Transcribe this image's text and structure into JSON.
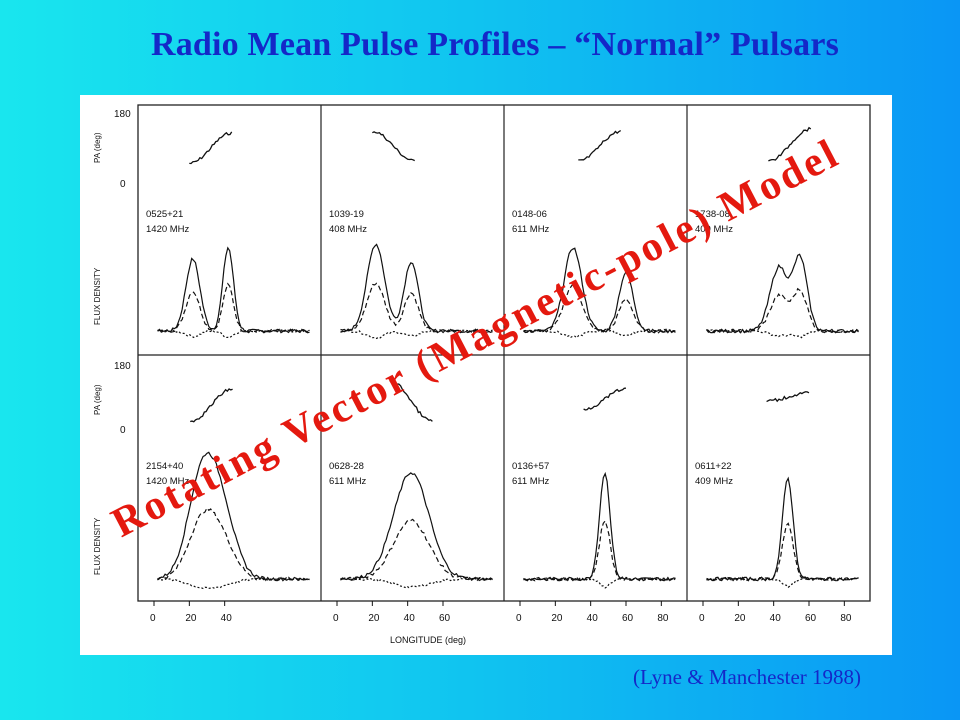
{
  "slide": {
    "title": "Radio Mean Pulse Profiles – “Normal” Pulsars",
    "overlay_text": "Rotating Vector (Magnetic-pole) Model",
    "citation": "(Lyne & Manchester 1988)",
    "title_color": "#1428c8",
    "overlay_color": "#e4190f"
  },
  "chart_data": {
    "type": "line",
    "xlabel": "LONGITUDE (deg)",
    "pa_label": "PA (deg)",
    "flux_label": "FLUX DENSITY",
    "pa_ticks": [
      "180",
      "0"
    ],
    "x_ticks": [
      [
        "0",
        "20",
        "40"
      ],
      [
        "0",
        "20",
        "40",
        "60"
      ],
      [
        "0",
        "20",
        "40",
        "60",
        "80"
      ],
      [
        "0",
        "20",
        "40",
        "60",
        "80"
      ]
    ],
    "top_row": [
      {
        "name": "0525+21",
        "freq": "1420 MHz",
        "peaks": [
          [
            22,
            0.62,
            4
          ],
          [
            42,
            0.72,
            3
          ]
        ],
        "pa_start": 0.52,
        "pa_end": 0.9
      },
      {
        "name": "1039-19",
        "freq": "408 MHz",
        "peaks": [
          [
            22,
            0.75,
            5
          ],
          [
            42,
            0.6,
            4
          ]
        ],
        "pa_start": 0.92,
        "pa_end": 0.55
      },
      {
        "name": "0148-06",
        "freq": "611 MHz",
        "peaks": [
          [
            30,
            0.72,
            5
          ],
          [
            60,
            0.5,
            4
          ]
        ],
        "pa_start": 0.55,
        "pa_end": 0.92
      },
      {
        "name": "1738-08",
        "freq": "409 MHz",
        "peaks": [
          [
            43,
            0.55,
            5
          ],
          [
            55,
            0.62,
            4
          ]
        ],
        "pa_start": 0.55,
        "pa_end": 0.95
      }
    ],
    "bottom_row": [
      {
        "name": "2154+40",
        "freq": "1420 MHz",
        "peaks": [
          [
            27,
            0.85,
            8
          ],
          [
            38,
            0.55,
            8
          ]
        ],
        "pa_start": 0.45,
        "pa_end": 0.85
      },
      {
        "name": "0628-28",
        "freq": "611 MHz",
        "peaks": [
          [
            42,
            0.95,
            10
          ]
        ],
        "pa_start": 0.95,
        "pa_end": 0.45
      },
      {
        "name": "0136+57",
        "freq": "611 MHz",
        "peaks": [
          [
            48,
            0.95,
            3
          ]
        ],
        "pa_start": 0.6,
        "pa_end": 0.85
      },
      {
        "name": "0611+22",
        "freq": "409 MHz",
        "peaks": [
          [
            48,
            0.9,
            3
          ]
        ],
        "pa_start": 0.7,
        "pa_end": 0.8
      }
    ]
  }
}
